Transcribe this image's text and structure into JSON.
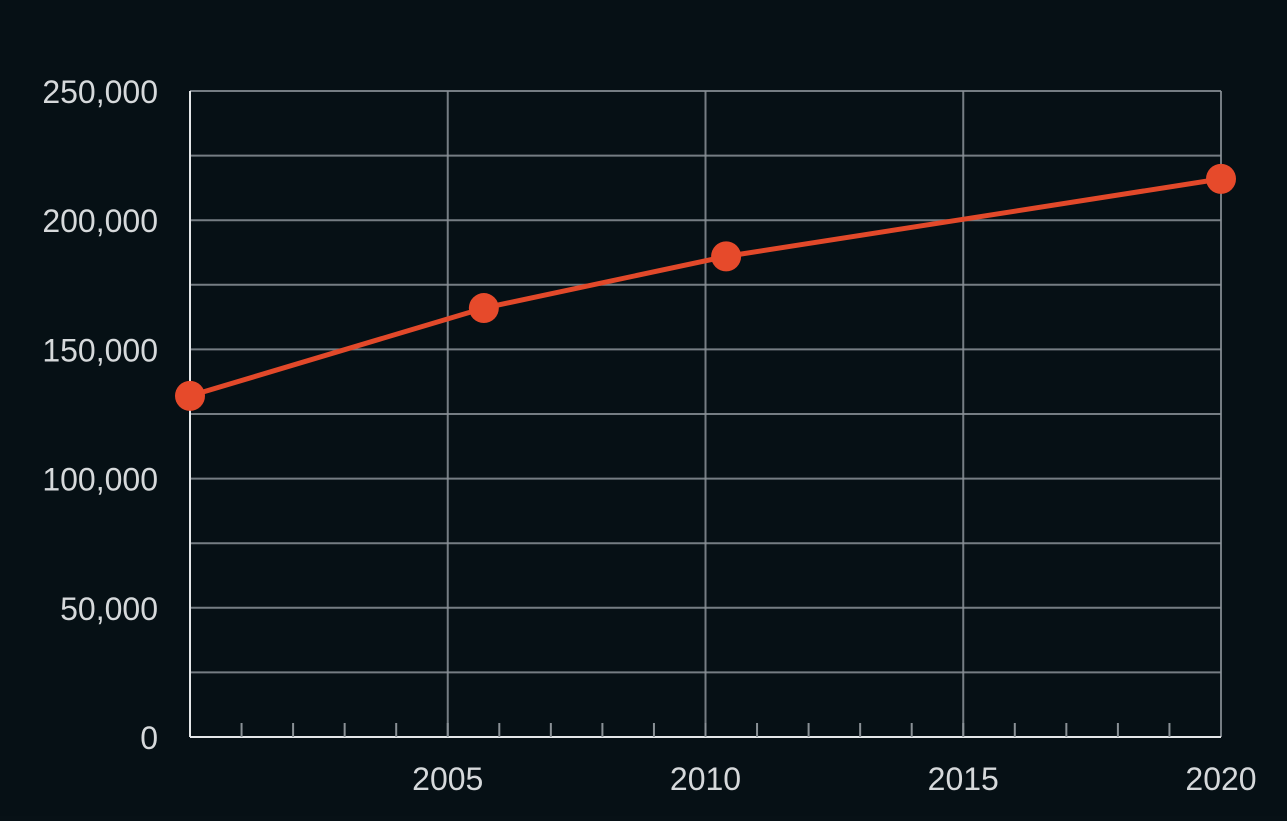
{
  "chart_data": {
    "type": "line",
    "x_ticks": [
      "2005",
      "2010",
      "2015",
      "2020"
    ],
    "y_ticks": [
      "0",
      "50,000",
      "100,000",
      "150,000",
      "200,000",
      "250,000"
    ],
    "xlim": [
      2000,
      2020
    ],
    "ylim": [
      0,
      250000
    ],
    "grid": true,
    "series": [
      {
        "x": [
          2000,
          2005.7,
          2010.4,
          2020
        ],
        "y": [
          132000,
          166000,
          186000,
          216000
        ]
      }
    ]
  },
  "colors": {
    "background": "#061015",
    "grid": "#8a9196",
    "axis": "#e3e6e8",
    "line": "#e2492a",
    "marker": "#e64a2b",
    "text": "#d6d9db"
  }
}
